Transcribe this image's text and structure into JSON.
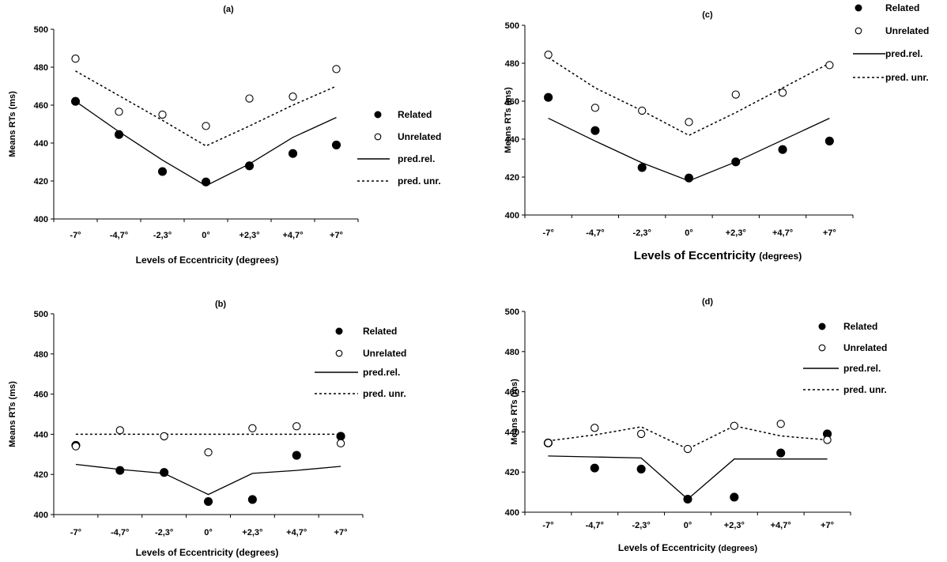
{
  "chart_data": [
    {
      "type": "line",
      "title": "(a)",
      "xlabel": "Levels of Eccentricity",
      "xlabel_suffix": "(degrees)",
      "ylabel": "Means RTs (ms)",
      "categories": [
        "-7°",
        "-4,7°",
        "-2,3°",
        "0°",
        "+2,3°",
        "+4,7°",
        "+7°"
      ],
      "ylim": [
        400,
        500
      ],
      "yticks": [
        "400",
        "420",
        "440",
        "460",
        "480",
        "500"
      ],
      "legend_position": "right",
      "series": [
        {
          "name": "Related",
          "style": "filled-dot",
          "values": [
            462,
            444.5,
            425,
            419.5,
            428,
            434.5,
            439
          ]
        },
        {
          "name": "Unrelated",
          "style": "open-dot",
          "values": [
            484.5,
            456.5,
            455,
            449,
            463.5,
            464.5,
            479
          ]
        },
        {
          "name": "pred.rel.",
          "style": "solid-line",
          "values": [
            462,
            446,
            431,
            417.5,
            429,
            443,
            453.5
          ]
        },
        {
          "name": "pred. unr.",
          "style": "dashed-line",
          "values": [
            478,
            465,
            452,
            438.5,
            449,
            460,
            470
          ]
        }
      ]
    },
    {
      "type": "line",
      "title": "(b)",
      "xlabel": "Levels of Eccentricity",
      "xlabel_suffix": "(degrees)",
      "ylabel": "Means RTs (ms)",
      "categories": [
        "-7°",
        "-4,7°",
        "-2,3°",
        "0°",
        "+2,3°",
        "+4,7°",
        "+7°"
      ],
      "ylim": [
        400,
        500
      ],
      "yticks": [
        "400",
        "420",
        "440",
        "460",
        "480",
        "500"
      ],
      "legend_position": "top-right",
      "series": [
        {
          "name": "Related",
          "style": "filled-dot",
          "values": [
            434.5,
            422,
            421,
            406.5,
            407.5,
            429.5,
            439
          ]
        },
        {
          "name": "Unrelated",
          "style": "open-dot",
          "values": [
            434,
            442,
            439,
            431,
            443,
            444,
            435.5
          ]
        },
        {
          "name": "pred.rel.",
          "style": "solid-line",
          "values": [
            425,
            422.5,
            420.5,
            410,
            420.5,
            422,
            424
          ]
        },
        {
          "name": "pred. unr.",
          "style": "dashed-line",
          "values": [
            440,
            440,
            440,
            440,
            440,
            440,
            440
          ]
        }
      ]
    },
    {
      "type": "line",
      "title": "(c)",
      "xlabel": "Levels of Eccentricity",
      "xlabel_suffix": "(degrees)",
      "ylabel": "Means RTs (ms)",
      "categories": [
        "-7°",
        "-4,7°",
        "-2,3°",
        "0°",
        "+2,3°",
        "+4,7°",
        "+7°"
      ],
      "ylim": [
        400,
        500
      ],
      "yticks": [
        "400",
        "420",
        "440",
        "460",
        "480",
        "500"
      ],
      "legend_position": "top-right",
      "series": [
        {
          "name": "Related",
          "style": "filled-dot",
          "values": [
            462,
            444.5,
            425,
            419.5,
            428,
            434.5,
            439
          ]
        },
        {
          "name": "Unrelated",
          "style": "open-dot",
          "values": [
            484.5,
            456.5,
            455,
            449,
            463.5,
            464.5,
            479
          ]
        },
        {
          "name": "pred.rel.",
          "style": "solid-line",
          "values": [
            451,
            439,
            427.5,
            418,
            428,
            439.5,
            451
          ]
        },
        {
          "name": "pred. unr.",
          "style": "dashed-line",
          "values": [
            483,
            467,
            455,
            442,
            454,
            467,
            480
          ]
        }
      ]
    },
    {
      "type": "line",
      "title": "(d)",
      "xlabel": "Levels of Eccentricity",
      "xlabel_suffix": "(degrees)",
      "ylabel": "Means RTs (ms)",
      "categories": [
        "-7°",
        "-4,7°",
        "-2,3°",
        "0°",
        "+2,3°",
        "+4,7°",
        "+7°"
      ],
      "ylim": [
        400,
        500
      ],
      "yticks": [
        "400",
        "420",
        "440",
        "460",
        "480",
        "500"
      ],
      "legend_position": "top-right",
      "series": [
        {
          "name": "Related",
          "style": "filled-dot",
          "values": [
            434.5,
            422,
            421.5,
            406.5,
            407.5,
            429.5,
            439
          ]
        },
        {
          "name": "Unrelated",
          "style": "open-dot",
          "values": [
            434.5,
            442,
            439,
            431.5,
            443,
            444,
            436
          ]
        },
        {
          "name": "pred.rel.",
          "style": "solid-line",
          "values": [
            428,
            427.5,
            427,
            406.5,
            426.5,
            426.5,
            426.5
          ]
        },
        {
          "name": "pred. unr.",
          "style": "dashed-line",
          "values": [
            435.5,
            438.5,
            442.5,
            431.5,
            443,
            438,
            436
          ]
        }
      ]
    }
  ]
}
